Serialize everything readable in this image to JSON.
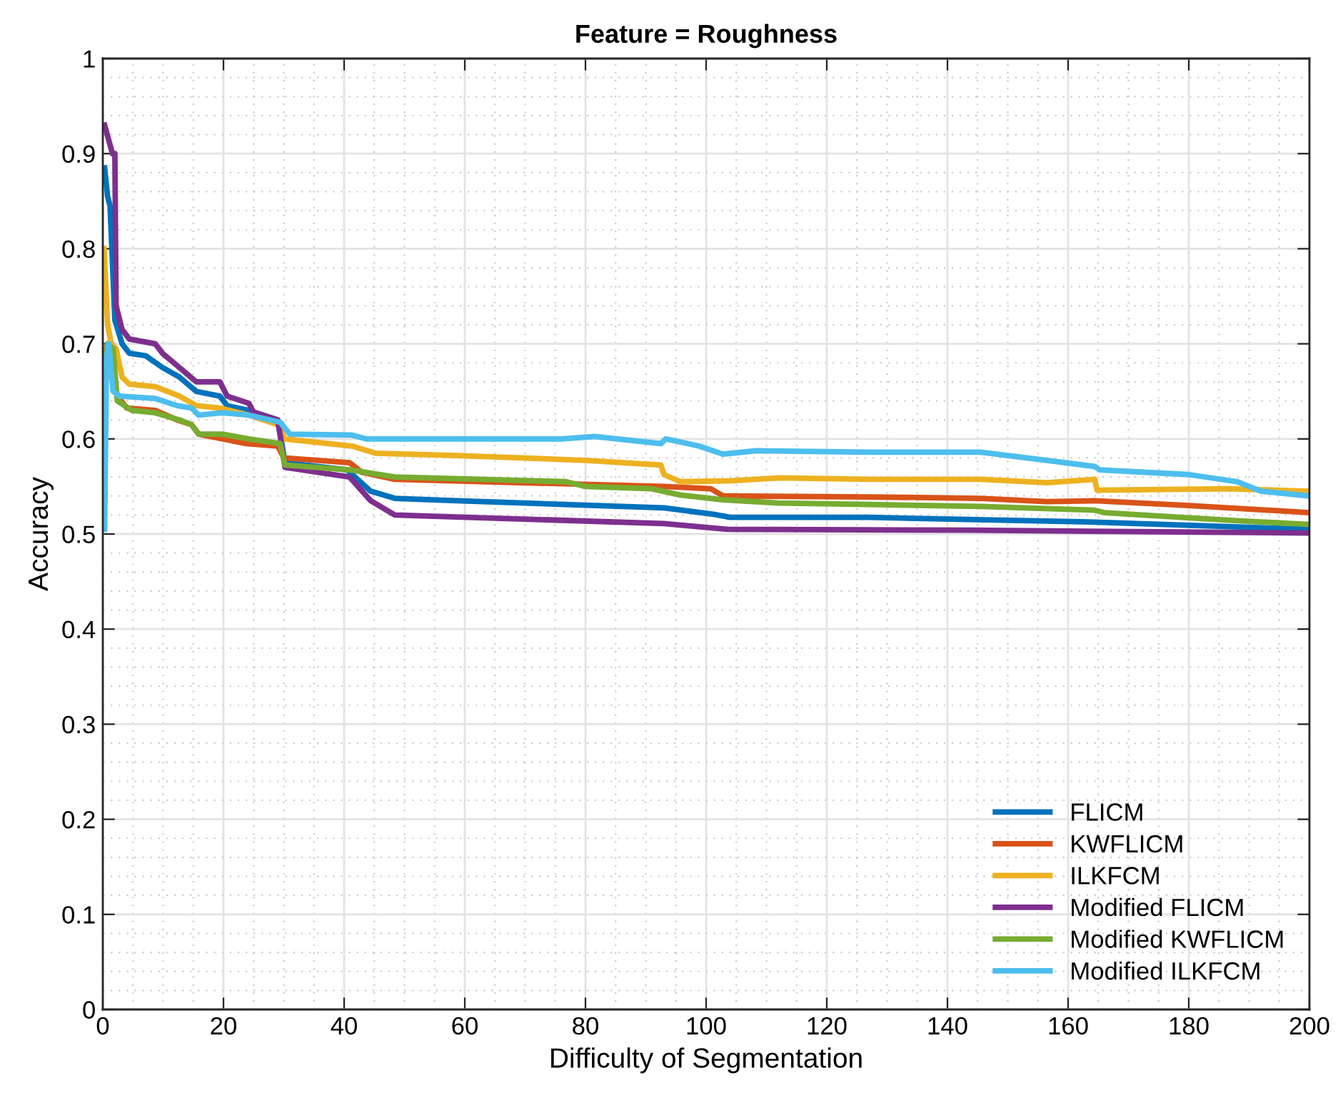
{
  "chart_data": {
    "type": "line",
    "title": "Feature = Roughness",
    "xlabel": "Difficulty of Segmentation",
    "ylabel": "Accuracy",
    "xlim": [
      0,
      200
    ],
    "ylim": [
      0,
      1
    ],
    "xticks": [
      0,
      20,
      40,
      60,
      80,
      100,
      120,
      140,
      160,
      180,
      200
    ],
    "yticks": [
      0,
      0.1,
      0.2,
      0.3,
      0.4,
      0.5,
      0.6,
      0.7,
      0.8,
      0.9,
      1
    ],
    "grid": true,
    "legend": "bottom right",
    "marker": "none",
    "line_style": "solid",
    "series": [
      {
        "name": "FLICM",
        "color": "#0072bd",
        "x": [
          0.3,
          0.8,
          1.2,
          2,
          3.2,
          4.4,
          7.1,
          9.9,
          12.7,
          15.5,
          19.4,
          20.6,
          24.2,
          29,
          30.2,
          40.5,
          44.4,
          48.4,
          58.7,
          93,
          101,
          104,
          127,
          164.4,
          200
        ],
        "values": [
          0.885,
          0.855,
          0.845,
          0.725,
          0.7,
          0.69,
          0.6875,
          0.675,
          0.665,
          0.65,
          0.645,
          0.635,
          0.63,
          0.62,
          0.575,
          0.5675,
          0.545,
          0.5375,
          0.535,
          0.5275,
          0.521,
          0.5175,
          0.5175,
          0.5125,
          0.505
        ]
      },
      {
        "name": "KWFLICM",
        "color": "#d95319",
        "x": [
          0.3,
          0.8,
          2.4,
          4,
          8.7,
          12.3,
          14.7,
          15.9,
          19.8,
          23.8,
          29,
          30,
          40.9,
          42.9,
          48.4,
          93,
          100.8,
          102.8,
          127,
          145.5,
          156.5,
          164.4,
          180,
          200
        ],
        "values": [
          0.69,
          0.7,
          0.645,
          0.6325,
          0.63,
          0.62,
          0.615,
          0.605,
          0.6,
          0.595,
          0.5925,
          0.58,
          0.575,
          0.565,
          0.5575,
          0.55,
          0.5475,
          0.54,
          0.539,
          0.5375,
          0.534,
          0.535,
          0.53,
          0.5225
        ]
      },
      {
        "name": "ILKFCM",
        "color": "#edb120",
        "x": [
          0.2,
          0.8,
          1.4,
          2.2,
          3.2,
          4.4,
          8.7,
          12.7,
          15.5,
          19.4,
          24.2,
          29,
          30.2,
          41.3,
          45.2,
          58.7,
          80,
          92.5,
          93,
          95.7,
          104.3,
          112.2,
          127,
          145.5,
          156.5,
          164.4,
          164.8,
          186.5,
          200
        ],
        "values": [
          0.8,
          0.72,
          0.7,
          0.695,
          0.665,
          0.6575,
          0.655,
          0.645,
          0.635,
          0.6325,
          0.625,
          0.615,
          0.6,
          0.5925,
          0.585,
          0.5825,
          0.5775,
          0.5725,
          0.5625,
          0.555,
          0.556,
          0.559,
          0.5575,
          0.5575,
          0.554,
          0.5575,
          0.546,
          0.5475,
          0.545
        ]
      },
      {
        "name": "Modified FLICM",
        "color": "#7e2f8e",
        "x": [
          0.3,
          1.6,
          2,
          2.2,
          3.2,
          4.4,
          8.7,
          9.9,
          12.7,
          15.5,
          19.4,
          20.6,
          24.2,
          25,
          29,
          30.2,
          40.9,
          44.4,
          48.4,
          93,
          103.5,
          144,
          200
        ],
        "values": [
          0.93,
          0.9,
          0.9,
          0.74,
          0.715,
          0.705,
          0.7,
          0.69,
          0.675,
          0.66,
          0.66,
          0.645,
          0.6375,
          0.628,
          0.62,
          0.57,
          0.56,
          0.535,
          0.52,
          0.511,
          0.505,
          0.504,
          0.501
        ]
      },
      {
        "name": "Modified KWFLICM",
        "color": "#77ac30",
        "x": [
          0.4,
          0.8,
          1.7,
          2.4,
          4.8,
          8.7,
          12.7,
          14.7,
          15.9,
          19.8,
          24.2,
          29.4,
          30.2,
          40.9,
          48.4,
          76.8,
          80,
          91,
          95.7,
          102.8,
          112,
          127,
          145.5,
          164.4,
          166,
          188,
          200
        ],
        "values": [
          0.685,
          0.7,
          0.695,
          0.64,
          0.63,
          0.6275,
          0.62,
          0.615,
          0.605,
          0.605,
          0.6,
          0.595,
          0.5725,
          0.5675,
          0.56,
          0.555,
          0.55,
          0.5475,
          0.541,
          0.536,
          0.5325,
          0.531,
          0.529,
          0.525,
          0.5225,
          0.514,
          0.51
        ]
      },
      {
        "name": "Modified ILKFCM",
        "color": "#4dbeee",
        "x": [
          0.3,
          0.6,
          1,
          1.2,
          1.7,
          2.8,
          8.7,
          12.3,
          14.7,
          15.9,
          19.8,
          24.2,
          29.4,
          31,
          41.3,
          43.7,
          76,
          81.5,
          92.5,
          93.3,
          98.8,
          102.8,
          108.3,
          127,
          145.5,
          156.5,
          164.4,
          165.2,
          180,
          188,
          192,
          200
        ],
        "values": [
          0.505,
          0.685,
          0.7,
          0.685,
          0.65,
          0.645,
          0.6425,
          0.635,
          0.6325,
          0.625,
          0.6275,
          0.625,
          0.6175,
          0.605,
          0.604,
          0.6,
          0.6,
          0.6025,
          0.595,
          0.6,
          0.5925,
          0.584,
          0.5875,
          0.586,
          0.586,
          0.5775,
          0.571,
          0.5675,
          0.5625,
          0.555,
          0.545,
          0.54
        ]
      }
    ]
  }
}
